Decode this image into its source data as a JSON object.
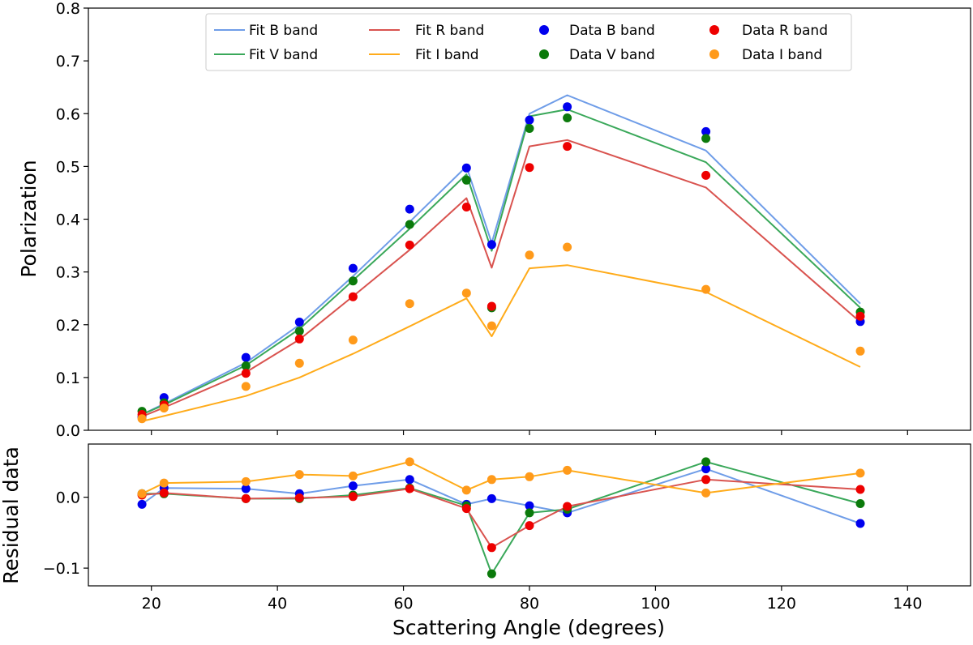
{
  "chart_data": {
    "type": "scatter",
    "colors": {
      "fit_B": "#6f9de8",
      "fit_V": "#3aa85a",
      "fit_R": "#d9534f",
      "fit_I": "#ffab1a",
      "data_B": "#0000ee",
      "data_V": "#0b7a0b",
      "data_R": "#ee0000",
      "data_I": "#ff9a1a"
    },
    "top": {
      "ylabel": "Polarization",
      "ylim": [
        0.0,
        0.8
      ],
      "yticks": [
        "0.0",
        "0.1",
        "0.2",
        "0.3",
        "0.4",
        "0.5",
        "0.6",
        "0.7",
        "0.8"
      ],
      "legend_position": "top-center",
      "fit_series": [
        {
          "name": "Fit B band",
          "color_key": "fit_B",
          "x": [
            18.5,
            22,
            35,
            43.5,
            52,
            61,
            70,
            74,
            80,
            86,
            108,
            132.5
          ],
          "y": [
            0.03,
            0.05,
            0.128,
            0.2,
            0.292,
            0.395,
            0.5,
            0.355,
            0.6,
            0.635,
            0.53,
            0.24
          ]
        },
        {
          "name": "Fit V band",
          "color_key": "fit_V",
          "x": [
            18.5,
            22,
            35,
            43.5,
            52,
            61,
            70,
            74,
            80,
            86,
            108,
            132.5
          ],
          "y": [
            0.03,
            0.048,
            0.123,
            0.192,
            0.284,
            0.382,
            0.485,
            0.34,
            0.595,
            0.608,
            0.508,
            0.232
          ]
        },
        {
          "name": "Fit R band",
          "color_key": "fit_R",
          "x": [
            18.5,
            22,
            35,
            43.5,
            52,
            61,
            70,
            74,
            80,
            86,
            108,
            132.5
          ],
          "y": [
            0.026,
            0.043,
            0.11,
            0.172,
            0.254,
            0.342,
            0.44,
            0.308,
            0.538,
            0.55,
            0.46,
            0.205
          ]
        },
        {
          "name": "Fit I band",
          "color_key": "fit_I",
          "x": [
            18.5,
            22,
            35,
            43.5,
            52,
            61,
            70,
            74,
            80,
            86,
            108,
            132.5
          ],
          "y": [
            0.017,
            0.027,
            0.065,
            0.1,
            0.145,
            0.197,
            0.25,
            0.178,
            0.307,
            0.313,
            0.262,
            0.12
          ]
        }
      ],
      "data_series": [
        {
          "name": "Data B band",
          "color_key": "data_B",
          "x": [
            18.5,
            22,
            35,
            43.5,
            52,
            61,
            70,
            74,
            80,
            86,
            108,
            132.5
          ],
          "y": [
            0.025,
            0.062,
            0.138,
            0.205,
            0.307,
            0.419,
            0.497,
            0.352,
            0.588,
            0.613,
            0.566,
            0.206
          ]
        },
        {
          "name": "Data V band",
          "color_key": "data_V",
          "x": [
            18.5,
            22,
            35,
            43.5,
            52,
            61,
            70,
            74,
            80,
            86,
            108,
            132.5
          ],
          "y": [
            0.036,
            0.052,
            0.122,
            0.188,
            0.283,
            0.39,
            0.474,
            0.232,
            0.572,
            0.592,
            0.553,
            0.224
          ]
        },
        {
          "name": "Data R band",
          "color_key": "data_R",
          "x": [
            18.5,
            22,
            35,
            43.5,
            52,
            61,
            70,
            74,
            80,
            86,
            108,
            132.5
          ],
          "y": [
            0.03,
            0.048,
            0.108,
            0.173,
            0.253,
            0.351,
            0.423,
            0.235,
            0.498,
            0.538,
            0.483,
            0.216
          ]
        },
        {
          "name": "Data I band",
          "color_key": "data_I",
          "x": [
            18.5,
            22,
            35,
            43.5,
            52,
            61,
            70,
            74,
            80,
            86,
            108,
            132.5
          ],
          "y": [
            0.022,
            0.042,
            0.083,
            0.127,
            0.171,
            0.24,
            0.26,
            0.198,
            0.332,
            0.347,
            0.267,
            0.15
          ]
        }
      ]
    },
    "bottom": {
      "ylabel": "Residual data",
      "ylim": [
        -0.125,
        0.075
      ],
      "yticks": [
        -0.1,
        0.0
      ],
      "ytick_labels": [
        "−0.1",
        "0.0"
      ],
      "line_series": [
        {
          "name": "B",
          "color_key": "fit_B",
          "x": [
            18.5,
            22,
            35,
            43.5,
            52,
            61,
            70,
            74,
            80,
            86,
            108,
            132.5
          ],
          "y": [
            -0.01,
            0.013,
            0.012,
            0.005,
            0.016,
            0.025,
            -0.01,
            -0.002,
            -0.012,
            -0.022,
            0.04,
            -0.037
          ]
        },
        {
          "name": "V",
          "color_key": "fit_V",
          "x": [
            18.5,
            22,
            35,
            43.5,
            52,
            61,
            70,
            74,
            80,
            86,
            108,
            132.5
          ],
          "y": [
            0.005,
            0.005,
            -0.002,
            -0.002,
            0.003,
            0.013,
            -0.012,
            -0.108,
            -0.022,
            -0.017,
            0.05,
            -0.009
          ]
        },
        {
          "name": "R",
          "color_key": "fit_R",
          "x": [
            18.5,
            22,
            35,
            43.5,
            52,
            61,
            70,
            74,
            80,
            86,
            108,
            132.5
          ],
          "y": [
            0.003,
            0.006,
            -0.002,
            -0.001,
            0.001,
            0.012,
            -0.016,
            -0.071,
            -0.04,
            -0.013,
            0.025,
            0.011
          ]
        },
        {
          "name": "I",
          "color_key": "fit_I",
          "x": [
            18.5,
            22,
            35,
            43.5,
            52,
            61,
            70,
            74,
            80,
            86,
            108,
            132.5
          ],
          "y": [
            0.005,
            0.02,
            0.022,
            0.032,
            0.03,
            0.05,
            0.01,
            0.025,
            0.029,
            0.038,
            0.006,
            0.034
          ]
        }
      ],
      "point_series": [
        {
          "name": "B",
          "color_key": "data_B",
          "x": [
            18.5,
            22,
            35,
            43.5,
            52,
            61,
            70,
            74,
            80,
            86,
            108,
            132.5
          ],
          "y": [
            -0.01,
            0.013,
            0.012,
            0.005,
            0.016,
            0.025,
            -0.01,
            -0.002,
            -0.012,
            -0.022,
            0.04,
            -0.037
          ]
        },
        {
          "name": "V",
          "color_key": "data_V",
          "x": [
            18.5,
            22,
            35,
            43.5,
            52,
            61,
            70,
            74,
            80,
            86,
            108,
            132.5
          ],
          "y": [
            0.005,
            0.005,
            -0.002,
            -0.002,
            0.003,
            0.013,
            -0.012,
            -0.108,
            -0.022,
            -0.017,
            0.05,
            -0.009
          ]
        },
        {
          "name": "R",
          "color_key": "data_R",
          "x": [
            18.5,
            22,
            35,
            43.5,
            52,
            61,
            70,
            74,
            80,
            86,
            108,
            132.5
          ],
          "y": [
            0.003,
            0.006,
            -0.002,
            -0.001,
            0.001,
            0.012,
            -0.016,
            -0.071,
            -0.04,
            -0.013,
            0.025,
            0.011
          ]
        },
        {
          "name": "I",
          "color_key": "data_I",
          "x": [
            18.5,
            22,
            35,
            43.5,
            52,
            61,
            70,
            74,
            80,
            86,
            108,
            132.5
          ],
          "y": [
            0.005,
            0.02,
            0.022,
            0.032,
            0.03,
            0.05,
            0.01,
            0.025,
            0.029,
            0.038,
            0.006,
            0.034
          ]
        }
      ]
    },
    "xaxis": {
      "xlabel": "Scattering Angle (degrees)",
      "xlim": [
        10,
        150
      ],
      "xticks": [
        "20",
        "40",
        "60",
        "80",
        "100",
        "120",
        "140"
      ]
    }
  }
}
